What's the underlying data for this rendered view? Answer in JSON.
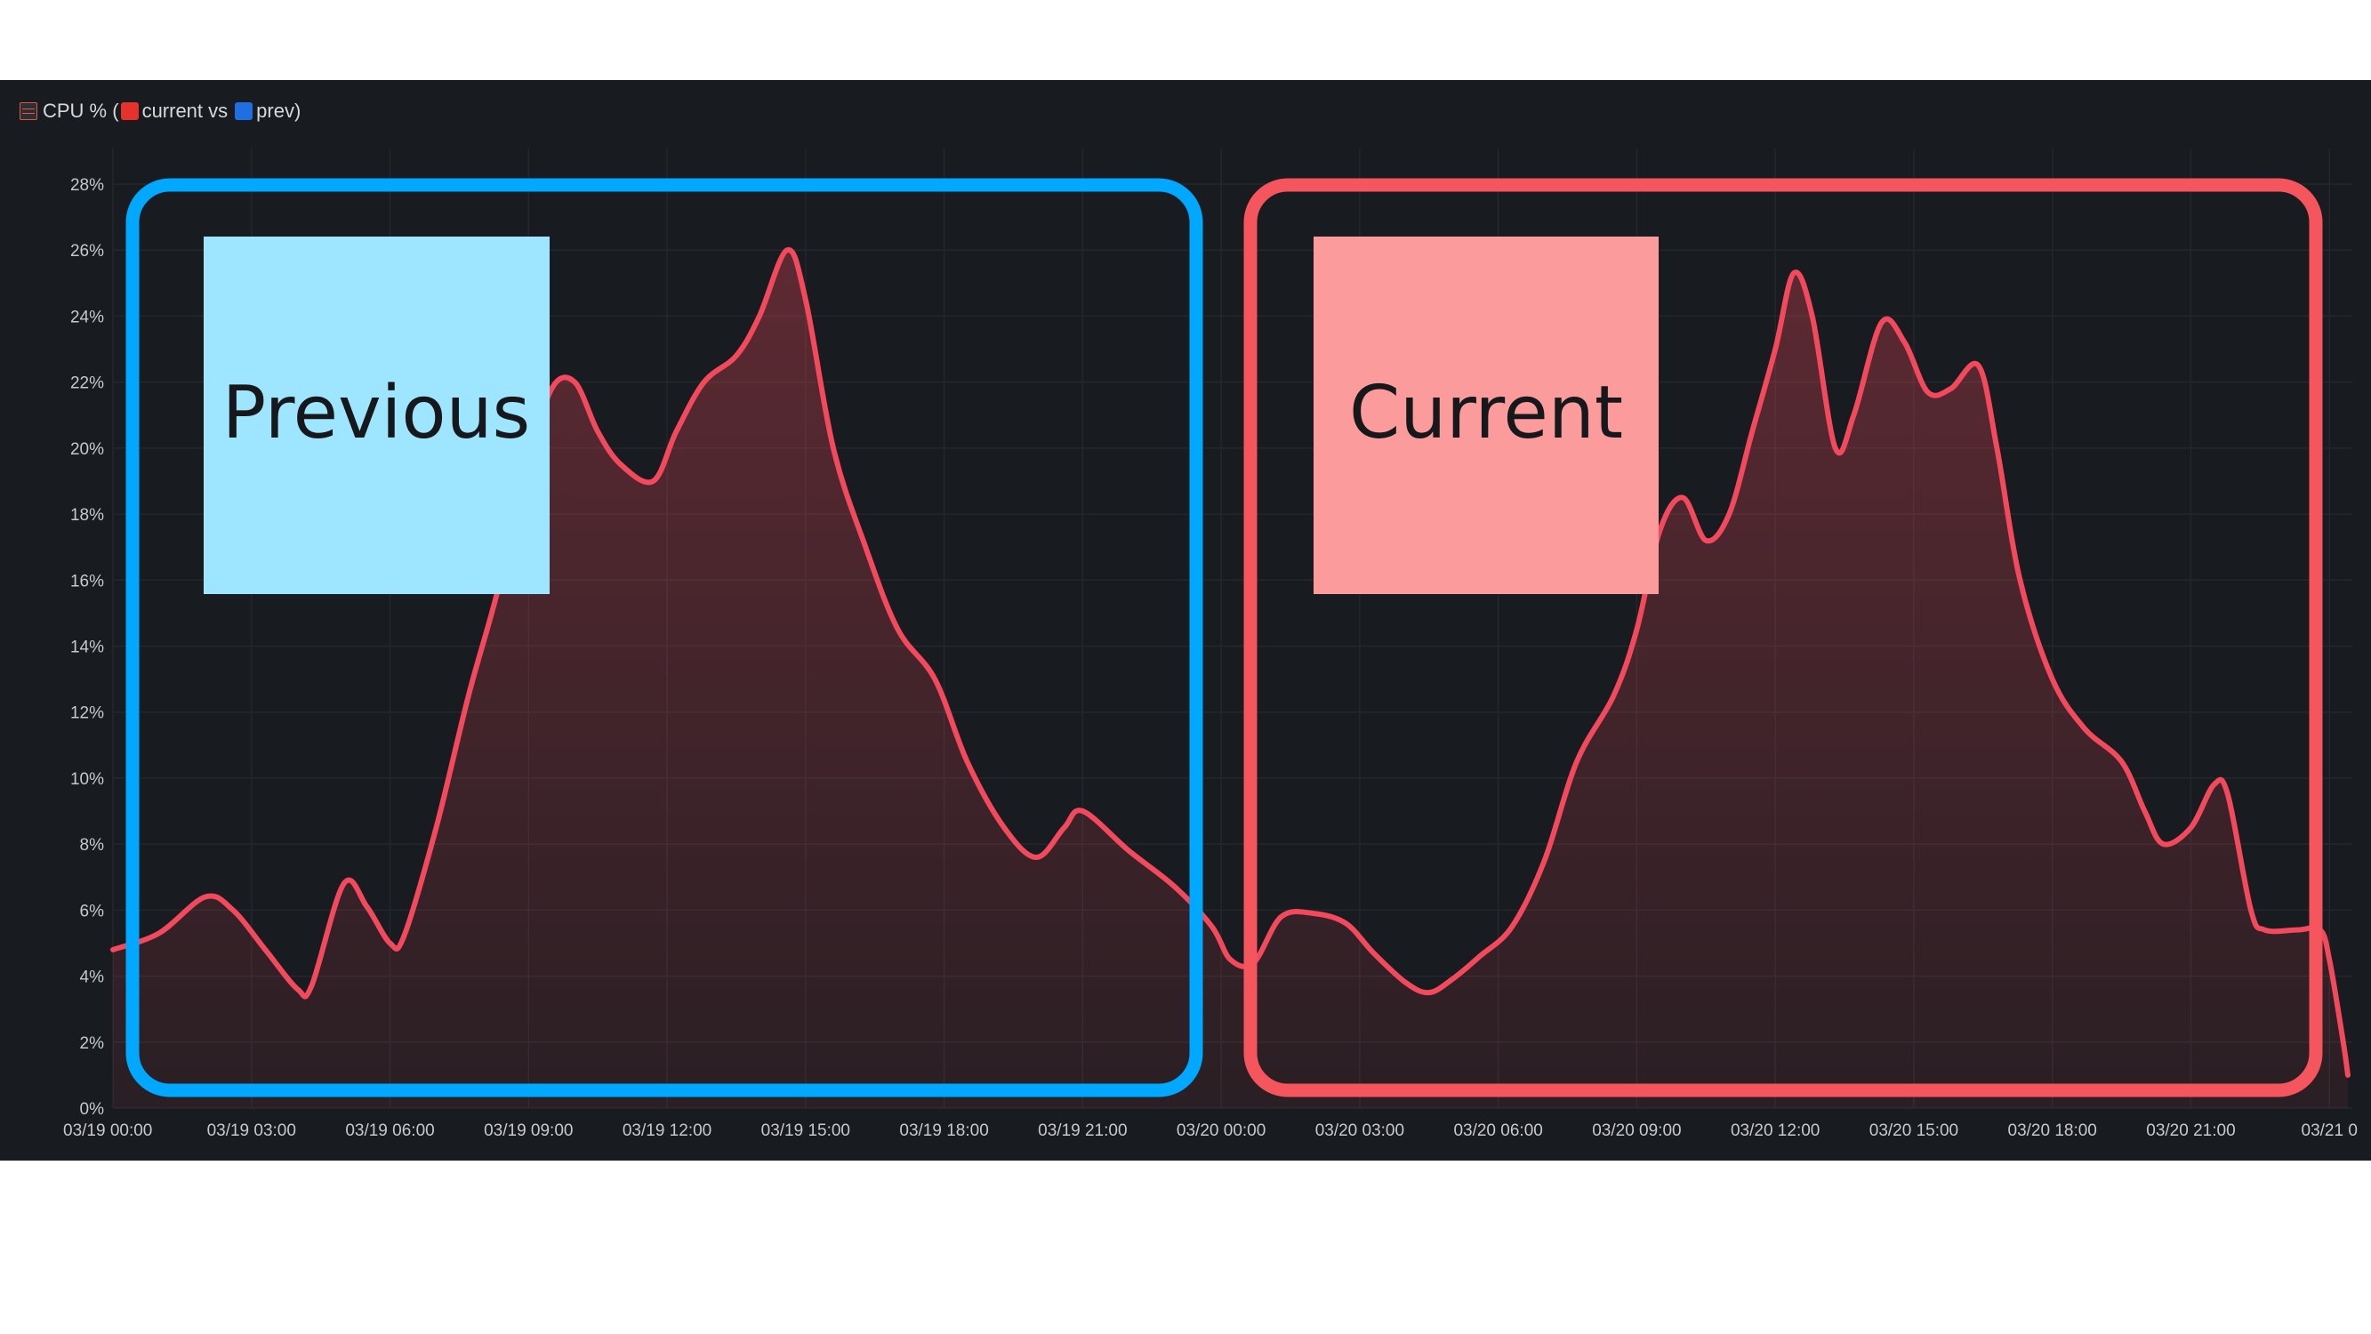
{
  "panel": {
    "title_prefix": "CPU % (",
    "current_label": "current vs",
    "prev_label": "prev)",
    "icons": [
      "table-icon",
      "red-square-icon",
      "blue-square-icon"
    ]
  },
  "annotations": {
    "previous_label": "Previous",
    "current_label": "Current",
    "previous_color": "#00a8ff",
    "current_color": "#f5555d",
    "previous_fill": "#9ee5ff",
    "current_fill": "#fb9b9c"
  },
  "chart_data": {
    "type": "area",
    "title": "",
    "xlabel": "",
    "ylabel": "",
    "series_color": "#f2495c",
    "background": "#181b1f",
    "grid": true,
    "ylim": [
      0,
      28
    ],
    "yticks": [
      "0%",
      "2%",
      "4%",
      "6%",
      "8%",
      "10%",
      "12%",
      "14%",
      "16%",
      "18%",
      "20%",
      "22%",
      "24%",
      "26%",
      "28%"
    ],
    "xlim": [
      0,
      48.4
    ],
    "xticks": [
      {
        "x": 0,
        "label": "03/19 00:00"
      },
      {
        "x": 3,
        "label": "03/19 03:00"
      },
      {
        "x": 6,
        "label": "03/19 06:00"
      },
      {
        "x": 9,
        "label": "03/19 09:00"
      },
      {
        "x": 12,
        "label": "03/19 12:00"
      },
      {
        "x": 15,
        "label": "03/19 15:00"
      },
      {
        "x": 18,
        "label": "03/19 18:00"
      },
      {
        "x": 21,
        "label": "03/19 21:00"
      },
      {
        "x": 24,
        "label": "03/20 00:00"
      },
      {
        "x": 27,
        "label": "03/20 03:00"
      },
      {
        "x": 30,
        "label": "03/20 06:00"
      },
      {
        "x": 33,
        "label": "03/20 09:00"
      },
      {
        "x": 36,
        "label": "03/20 12:00"
      },
      {
        "x": 39,
        "label": "03/20 15:00"
      },
      {
        "x": 42,
        "label": "03/20 18:00"
      },
      {
        "x": 45,
        "label": "03/20 21:00"
      },
      {
        "x": 48,
        "label": "03/21 0"
      }
    ],
    "series": [
      {
        "values": [
          [
            0.0,
            4.8
          ],
          [
            1.0,
            5.3
          ],
          [
            2.0,
            6.4
          ],
          [
            2.6,
            6.0
          ],
          [
            3.3,
            4.8
          ],
          [
            4.0,
            3.6
          ],
          [
            4.3,
            3.7
          ],
          [
            5.0,
            6.8
          ],
          [
            5.5,
            6.1
          ],
          [
            6.0,
            5.0
          ],
          [
            6.3,
            5.2
          ],
          [
            7.0,
            8.5
          ],
          [
            7.7,
            12.5
          ],
          [
            8.3,
            15.5
          ],
          [
            9.0,
            19.5
          ],
          [
            9.5,
            21.8
          ],
          [
            10.0,
            22.0
          ],
          [
            10.5,
            20.5
          ],
          [
            11.0,
            19.5
          ],
          [
            11.7,
            19.0
          ],
          [
            12.2,
            20.5
          ],
          [
            12.8,
            22.0
          ],
          [
            13.5,
            22.8
          ],
          [
            14.0,
            24.0
          ],
          [
            14.6,
            26.0
          ],
          [
            15.0,
            24.5
          ],
          [
            15.6,
            20.0
          ],
          [
            16.3,
            17.0
          ],
          [
            17.0,
            14.5
          ],
          [
            17.8,
            13.0
          ],
          [
            18.5,
            10.5
          ],
          [
            19.3,
            8.5
          ],
          [
            20.0,
            7.6
          ],
          [
            20.6,
            8.5
          ],
          [
            21.0,
            9.0
          ],
          [
            22.0,
            7.8
          ],
          [
            23.0,
            6.7
          ],
          [
            23.8,
            5.5
          ],
          [
            24.2,
            4.5
          ],
          [
            24.7,
            4.4
          ],
          [
            25.3,
            5.8
          ],
          [
            26.0,
            5.9
          ],
          [
            26.7,
            5.6
          ],
          [
            27.3,
            4.7
          ],
          [
            28.0,
            3.8
          ],
          [
            28.5,
            3.5
          ],
          [
            29.0,
            3.9
          ],
          [
            29.6,
            4.6
          ],
          [
            30.3,
            5.5
          ],
          [
            31.0,
            7.5
          ],
          [
            31.7,
            10.5
          ],
          [
            32.5,
            12.5
          ],
          [
            33.0,
            14.5
          ],
          [
            33.5,
            17.5
          ],
          [
            34.0,
            18.5
          ],
          [
            34.5,
            17.2
          ],
          [
            35.0,
            18.0
          ],
          [
            35.5,
            20.5
          ],
          [
            36.0,
            23.0
          ],
          [
            36.4,
            25.3
          ],
          [
            36.8,
            24.0
          ],
          [
            37.3,
            20.0
          ],
          [
            37.7,
            21.0
          ],
          [
            38.3,
            23.8
          ],
          [
            38.8,
            23.2
          ],
          [
            39.3,
            21.7
          ],
          [
            39.8,
            21.8
          ],
          [
            40.4,
            22.5
          ],
          [
            40.8,
            20.0
          ],
          [
            41.3,
            16.0
          ],
          [
            42.0,
            13.0
          ],
          [
            42.7,
            11.5
          ],
          [
            43.5,
            10.5
          ],
          [
            44.0,
            9.0
          ],
          [
            44.4,
            8.0
          ],
          [
            45.0,
            8.5
          ],
          [
            45.5,
            9.8
          ],
          [
            45.8,
            9.5
          ],
          [
            46.3,
            6.0
          ],
          [
            46.6,
            5.4
          ],
          [
            47.3,
            5.4
          ],
          [
            47.8,
            5.4
          ],
          [
            48.0,
            4.5
          ],
          [
            48.3,
            2.0
          ],
          [
            48.4,
            1.0
          ]
        ]
      }
    ]
  }
}
